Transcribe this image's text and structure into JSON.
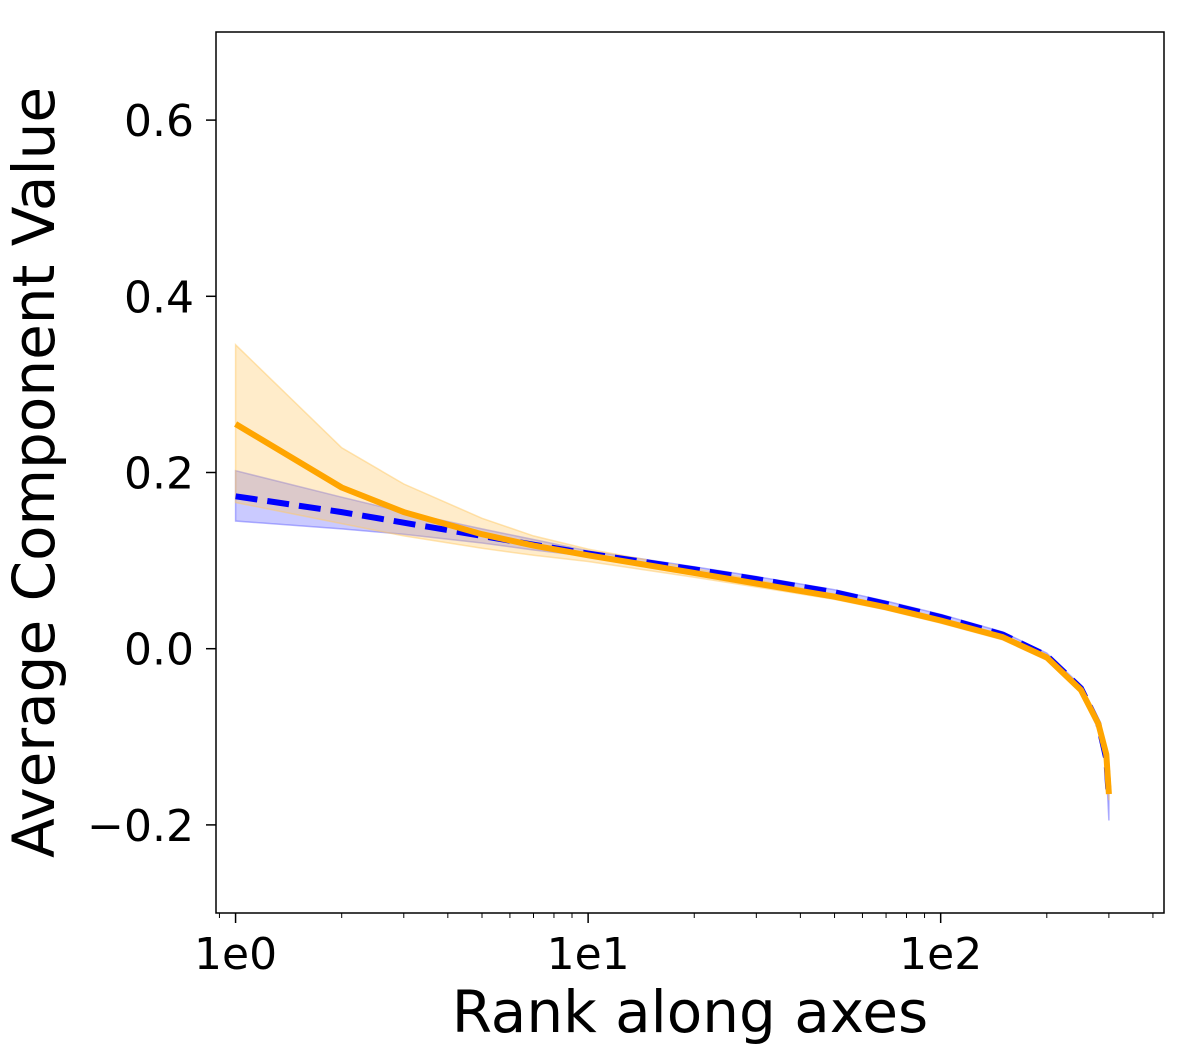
{
  "chart_data": {
    "type": "line",
    "title": "",
    "xlabel": "Rank along axes",
    "ylabel": "Average Component Value",
    "xscale": "log",
    "xlim": [
      0.88,
      430
    ],
    "ylim": [
      -0.3,
      0.7
    ],
    "grid": false,
    "legend": "none",
    "xticks": [
      {
        "value": 1,
        "label": "1e0"
      },
      {
        "value": 10,
        "label": "1e1"
      },
      {
        "value": 100,
        "label": "1e2"
      }
    ],
    "yticks": [
      {
        "value": 0.6,
        "label": "0.6"
      },
      {
        "value": 0.4,
        "label": "0.4"
      },
      {
        "value": 0.2,
        "label": "0.2"
      },
      {
        "value": 0.0,
        "label": "0.0"
      },
      {
        "value": -0.2,
        "label": "−0.2"
      }
    ],
    "series": [
      {
        "style": "dashed",
        "color": "#0000ff",
        "band_color": "#6666ff",
        "points": [
          [
            1,
            0.173
          ],
          [
            2,
            0.155
          ],
          [
            3,
            0.143
          ],
          [
            5,
            0.128
          ],
          [
            7,
            0.118
          ],
          [
            10,
            0.108
          ],
          [
            20,
            0.09
          ],
          [
            30,
            0.079
          ],
          [
            50,
            0.064
          ],
          [
            70,
            0.051
          ],
          [
            100,
            0.036
          ],
          [
            150,
            0.016
          ],
          [
            200,
            -0.008
          ],
          [
            250,
            -0.045
          ],
          [
            280,
            -0.085
          ],
          [
            295,
            -0.125
          ],
          [
            300,
            -0.17
          ]
        ],
        "band_upper": [
          [
            1,
            0.202
          ],
          [
            2,
            0.172
          ],
          [
            3,
            0.155
          ],
          [
            5,
            0.136
          ],
          [
            7,
            0.124
          ],
          [
            10,
            0.111
          ],
          [
            20,
            0.093
          ],
          [
            30,
            0.082
          ],
          [
            50,
            0.067
          ],
          [
            70,
            0.054
          ],
          [
            100,
            0.039
          ],
          [
            150,
            0.019
          ],
          [
            200,
            -0.005
          ],
          [
            250,
            -0.042
          ],
          [
            280,
            -0.08
          ],
          [
            295,
            -0.115
          ],
          [
            300,
            -0.15
          ]
        ],
        "band_lower": [
          [
            1,
            0.145
          ],
          [
            2,
            0.136
          ],
          [
            3,
            0.13
          ],
          [
            5,
            0.12
          ],
          [
            7,
            0.112
          ],
          [
            10,
            0.105
          ],
          [
            20,
            0.087
          ],
          [
            30,
            0.076
          ],
          [
            50,
            0.061
          ],
          [
            70,
            0.048
          ],
          [
            100,
            0.033
          ],
          [
            150,
            0.013
          ],
          [
            200,
            -0.011
          ],
          [
            250,
            -0.05
          ],
          [
            280,
            -0.09
          ],
          [
            295,
            -0.135
          ],
          [
            300,
            -0.195
          ]
        ]
      },
      {
        "style": "solid",
        "color": "#ffa500",
        "band_color": "#ffc966",
        "points": [
          [
            1,
            0.255
          ],
          [
            2,
            0.183
          ],
          [
            3,
            0.155
          ],
          [
            5,
            0.13
          ],
          [
            7,
            0.117
          ],
          [
            10,
            0.106
          ],
          [
            20,
            0.086
          ],
          [
            30,
            0.074
          ],
          [
            50,
            0.059
          ],
          [
            70,
            0.047
          ],
          [
            100,
            0.032
          ],
          [
            150,
            0.013
          ],
          [
            200,
            -0.01
          ],
          [
            250,
            -0.047
          ],
          [
            280,
            -0.085
          ],
          [
            295,
            -0.12
          ],
          [
            300,
            -0.165
          ]
        ],
        "band_upper": [
          [
            1,
            0.345
          ],
          [
            2,
            0.228
          ],
          [
            3,
            0.187
          ],
          [
            5,
            0.148
          ],
          [
            7,
            0.128
          ],
          [
            10,
            0.113
          ],
          [
            20,
            0.091
          ],
          [
            30,
            0.078
          ],
          [
            50,
            0.062
          ],
          [
            70,
            0.05
          ],
          [
            100,
            0.035
          ],
          [
            150,
            0.016
          ],
          [
            200,
            -0.007
          ],
          [
            250,
            -0.044
          ],
          [
            280,
            -0.082
          ],
          [
            295,
            -0.116
          ],
          [
            300,
            -0.158
          ]
        ],
        "band_lower": [
          [
            1,
            0.166
          ],
          [
            2,
            0.142
          ],
          [
            3,
            0.128
          ],
          [
            5,
            0.114
          ],
          [
            7,
            0.106
          ],
          [
            10,
            0.099
          ],
          [
            20,
            0.081
          ],
          [
            30,
            0.07
          ],
          [
            50,
            0.056
          ],
          [
            70,
            0.044
          ],
          [
            100,
            0.029
          ],
          [
            150,
            0.01
          ],
          [
            200,
            -0.013
          ],
          [
            250,
            -0.05
          ],
          [
            280,
            -0.088
          ],
          [
            295,
            -0.124
          ],
          [
            300,
            -0.172
          ]
        ]
      }
    ]
  }
}
